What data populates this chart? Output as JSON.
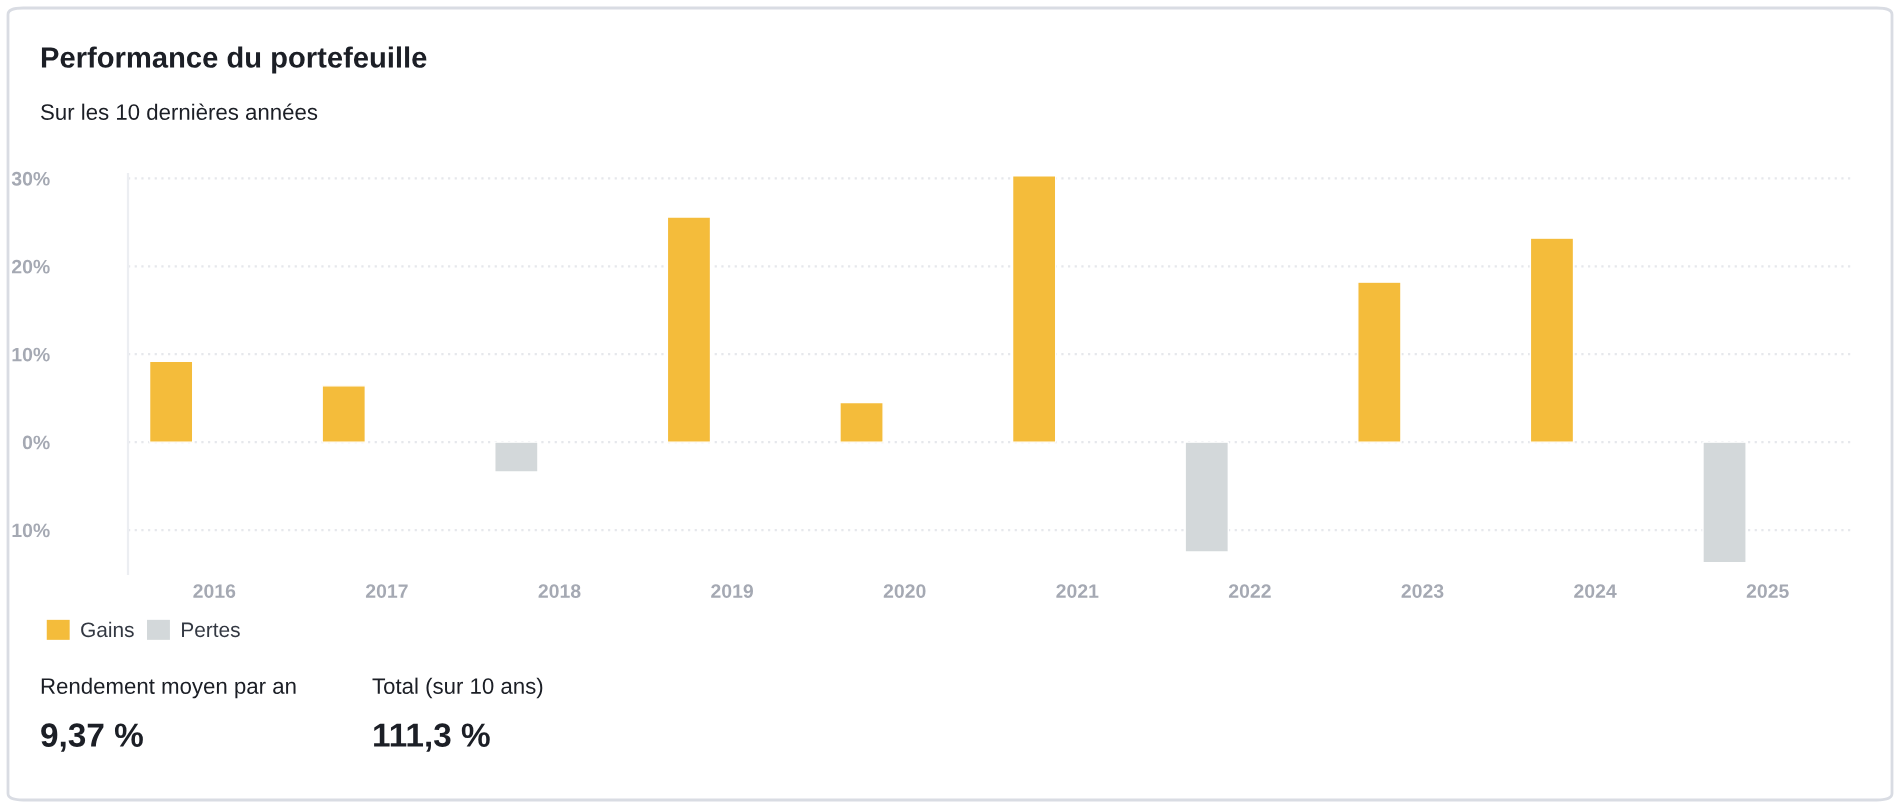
{
  "chart_data": {
    "type": "bar",
    "title": "Performance du portefeuille",
    "subtitle": "Sur les 10 dernières années",
    "categories": [
      "2016",
      "2017",
      "2018",
      "2019",
      "2020",
      "2021",
      "2022",
      "2023",
      "2024",
      "2025"
    ],
    "stacked": true,
    "series": [
      {
        "name": "Gains",
        "color": "#f4bc3b",
        "values": [
          9.2,
          6.4,
          null,
          25.6,
          4.5,
          30.3,
          null,
          18.2,
          23.2,
          null
        ]
      },
      {
        "name": "Pertes",
        "color": "#d3d8da",
        "values": [
          null,
          null,
          -3.4,
          null,
          null,
          null,
          -12.5,
          null,
          null,
          -13.7
        ]
      }
    ],
    "ylim": [
      -15,
      30.5
    ],
    "yticks": [
      {
        "value": -10,
        "label": "10%"
      },
      {
        "value": 0,
        "label": "0%"
      },
      {
        "value": 10,
        "label": "10%"
      },
      {
        "value": 20,
        "label": "20%"
      },
      {
        "value": 30,
        "label": "30%"
      }
    ],
    "grid": "y",
    "legend": "bottom left",
    "annotations": [
      "Rendement moyen par an",
      "9,37 %",
      "Total (sur 10 ans)",
      "111,3 %"
    ]
  }
}
